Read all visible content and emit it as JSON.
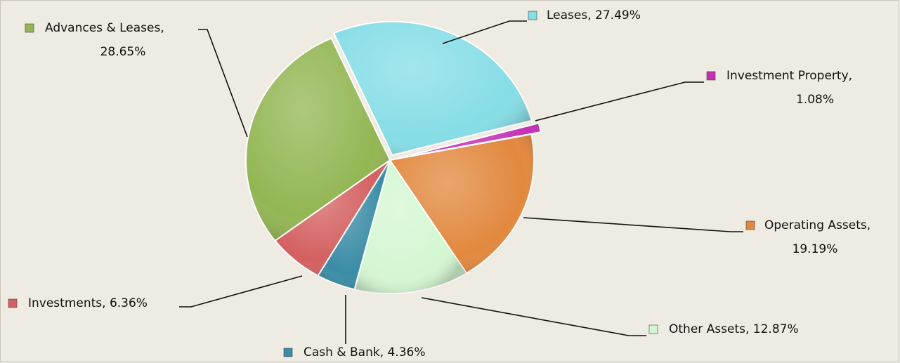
{
  "chart_data": {
    "type": "pie",
    "values": [
      27.49,
      1.08,
      19.19,
      12.87,
      4.36,
      6.36,
      28.65
    ],
    "value_labels": [
      "Leases, 27.49%",
      "Investment Property, 1.08%",
      "Operating Assets, 19.19%",
      "Other Assets, 12.87%",
      "Cash & Bank, 4.36%",
      "Investments, 6.36%",
      "Advances & Leases, 28.65%"
    ],
    "colors": [
      "#86dde6",
      "#c42fb4",
      "#e2883e",
      "#d4f7d2",
      "#3a8ca6",
      "#d46060",
      "#93b653"
    ]
  }
}
